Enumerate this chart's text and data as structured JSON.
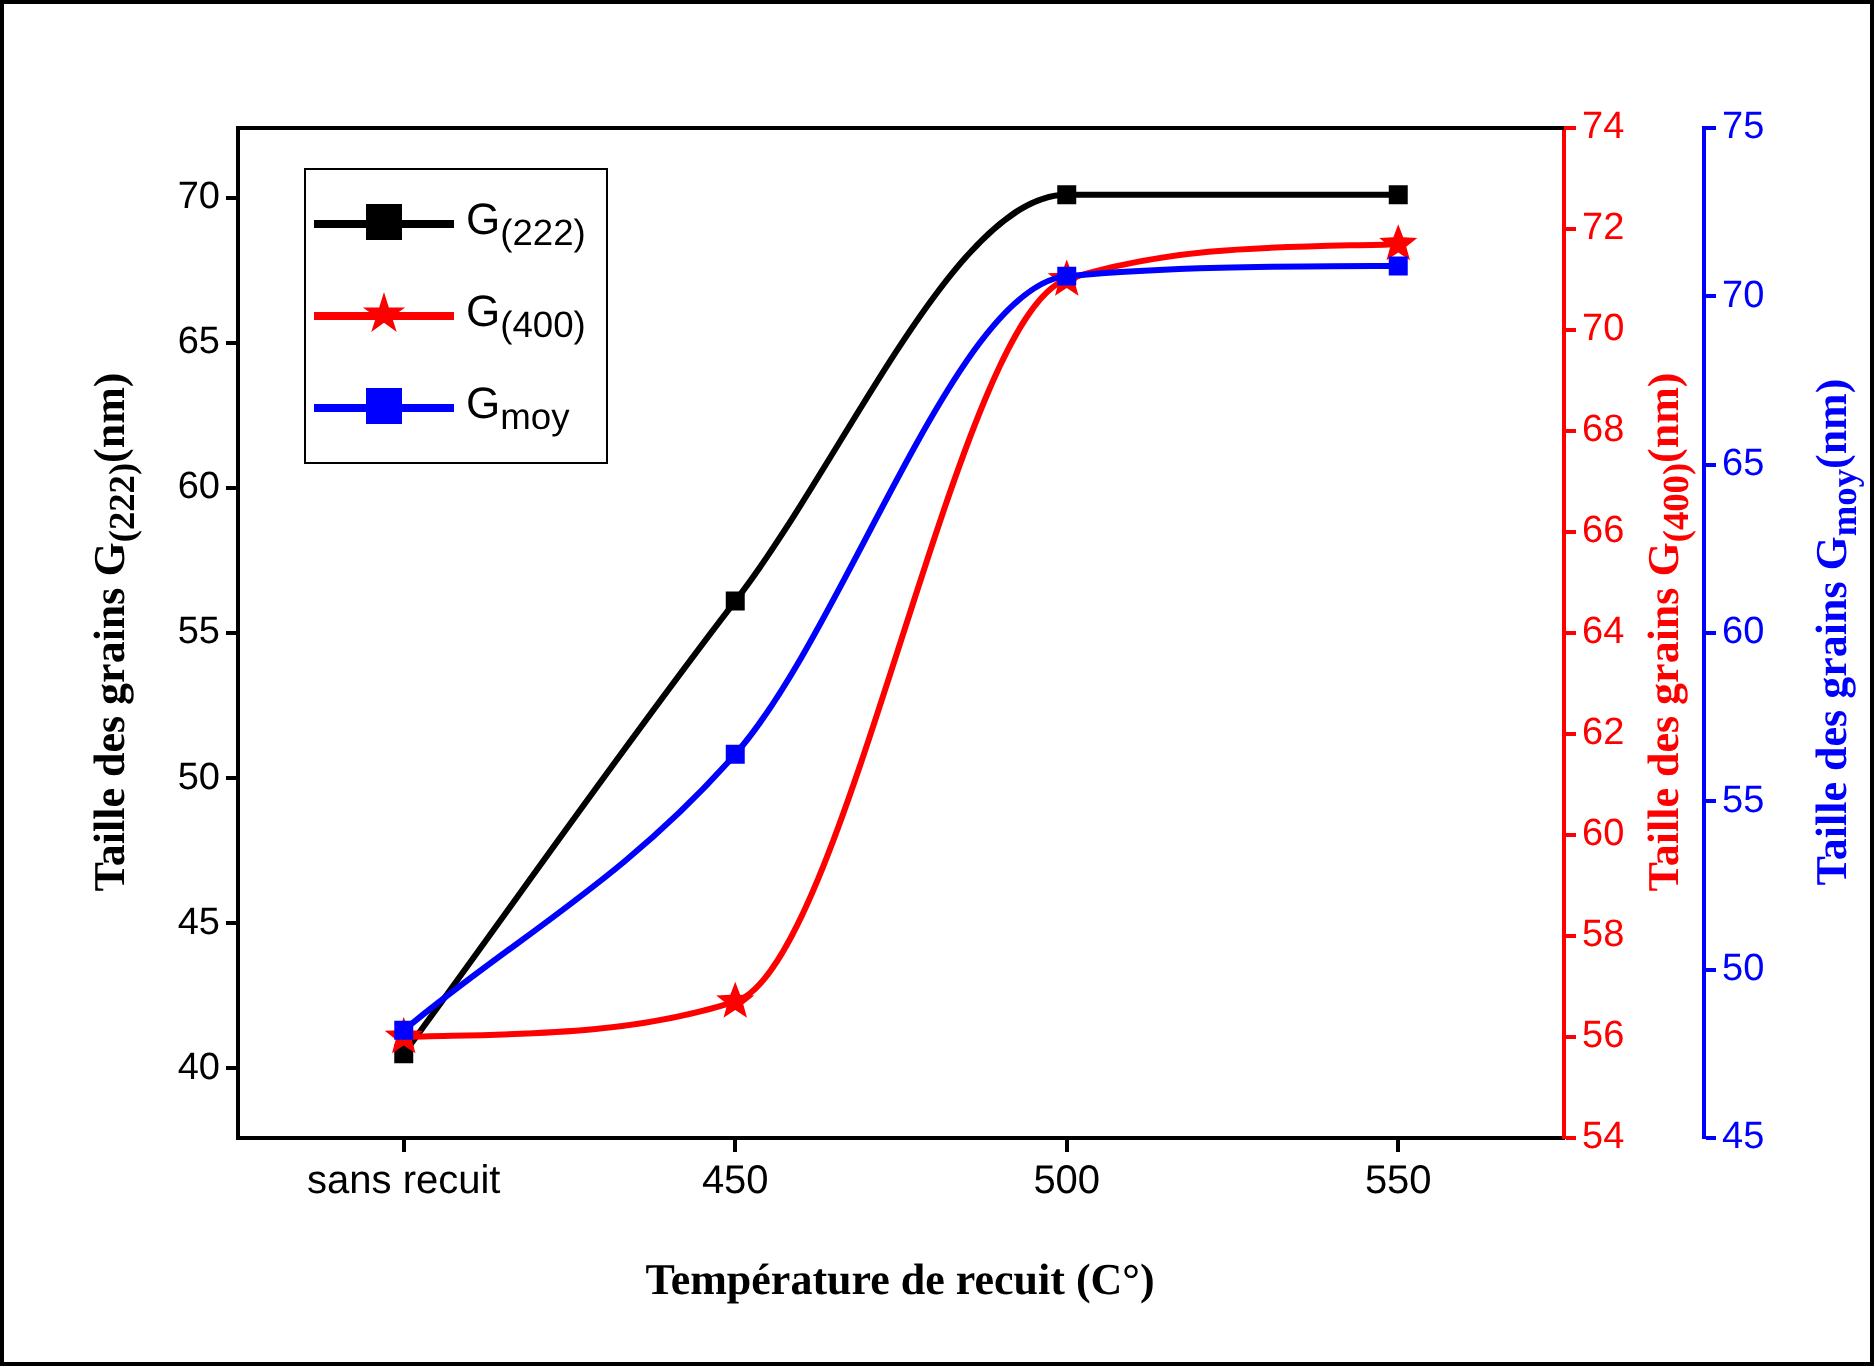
{
  "chart_data": {
    "type": "line",
    "xlabel": "Température de recuit (C°)",
    "ylabel": "Taille des grains G$_{(222)}$(nm)",
    "y2label": "Taille des grains G$_{(400)}$(nm)",
    "y3label": "Taille des grains G$_{moy}$(nm)",
    "categories": [
      "sans recuit",
      "450",
      "500",
      "550"
    ],
    "series": [
      {
        "name": "G$_{(222)}$",
        "color": "#000000",
        "values": [
          40.5,
          56.1,
          70.1,
          70.1
        ],
        "marker": "square",
        "axis": "y"
      },
      {
        "name": "G$_{(400)}$",
        "color": "#ff0000",
        "values": [
          56.0,
          56.7,
          71.0,
          71.7
        ],
        "marker": "star",
        "axis": "y2"
      },
      {
        "name": "G$_{moy}$",
        "color": "#0000ff",
        "values": [
          48.2,
          56.4,
          70.6,
          70.9
        ],
        "marker": "square",
        "axis": "y3"
      }
    ],
    "ylim": [
      37.6,
      72.4
    ],
    "yticks": [
      40,
      45,
      50,
      55,
      60,
      65,
      70
    ],
    "y2lim": [
      54,
      74
    ],
    "y2ticks": [
      54,
      56,
      58,
      60,
      62,
      64,
      66,
      68,
      70,
      72,
      74
    ],
    "y3lim": [
      45,
      75
    ],
    "y3ticks": [
      45,
      50,
      55,
      60,
      65,
      70,
      75
    ],
    "legend": "top left",
    "grid": false,
    "line_style": "solid"
  }
}
